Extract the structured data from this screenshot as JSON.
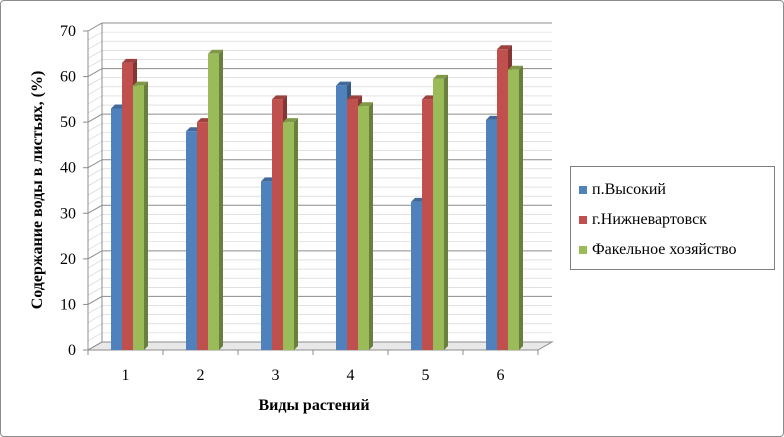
{
  "chart_data": {
    "type": "bar",
    "title": "",
    "xlabel": "Виды растений",
    "ylabel": "Содержание воды в листьях, (%)",
    "categories": [
      "1",
      "2",
      "3",
      "4",
      "5",
      "6"
    ],
    "ylim": [
      0,
      70
    ],
    "yticks": [
      "0",
      "10",
      "20",
      "30",
      "40",
      "50",
      "60",
      "70"
    ],
    "grid": true,
    "legend_position": "right",
    "series": [
      {
        "name": "п.Высокий",
        "color": "#4f81bd",
        "values": [
          53,
          48,
          37,
          58,
          32.5,
          50.5
        ]
      },
      {
        "name": "г.Нижневартовск",
        "color": "#c0504d",
        "values": [
          63,
          50,
          55,
          55,
          55,
          66
        ]
      },
      {
        "name": "Факельное хозяйство",
        "color": "#9bbb59",
        "values": [
          58,
          65,
          50,
          53.5,
          59.5,
          61.5
        ]
      }
    ]
  }
}
